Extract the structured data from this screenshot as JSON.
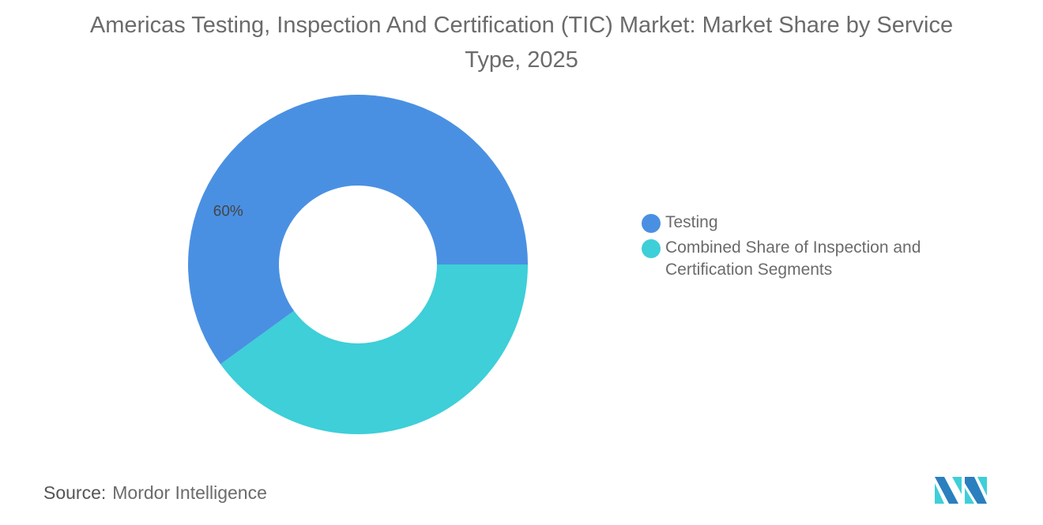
{
  "chart_data": {
    "type": "pie",
    "variant": "donut",
    "title": "Americas Testing, Inspection And Certification (TIC) Market: Market Share by Service Type, 2025",
    "categories": [
      "Testing",
      "Combined Share of Inspection and Certification Segments"
    ],
    "values": [
      60,
      40
    ],
    "colors": [
      "#4a90e2",
      "#3ecfd8"
    ],
    "data_labels": [
      "60%",
      ""
    ],
    "legend_position": "right"
  },
  "source": {
    "label": "Source:",
    "value": "Mordor Intelligence"
  },
  "logo": {
    "colors": [
      "#2a7fbf",
      "#3ecfd8"
    ]
  }
}
